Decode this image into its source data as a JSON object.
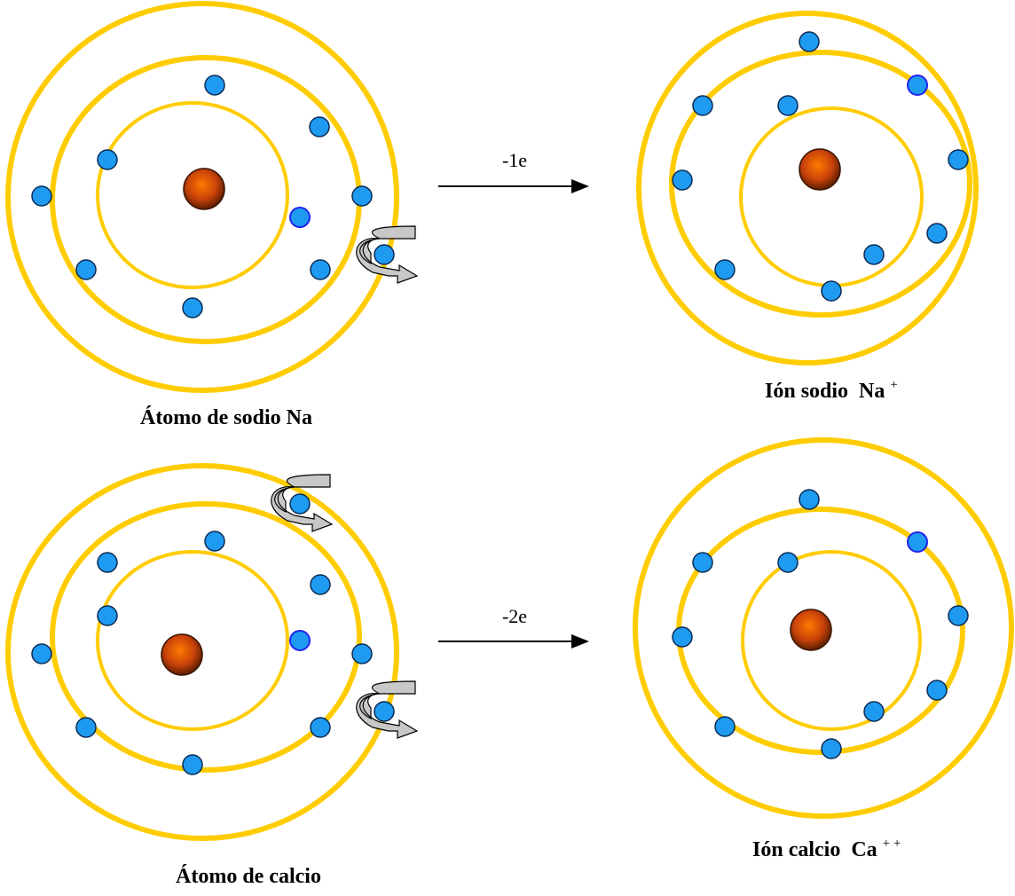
{
  "diagrams": [
    {
      "label": {
        "text": "Átomo de sodio Na"
      }
    },
    {
      "label": {
        "text": "Ión sodio  Na",
        "sup": "+"
      },
      "arrow": "-1e"
    },
    {
      "label": {
        "text": "Átomo de calcio"
      }
    },
    {
      "label": {
        "text": "Ión calcio  Ca",
        "sup": "+ +"
      },
      "arrow": "-2e"
    }
  ]
}
